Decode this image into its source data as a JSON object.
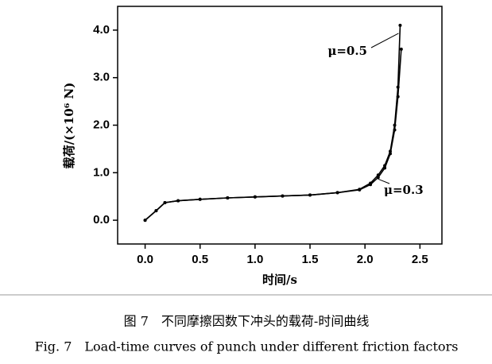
{
  "chart_data": {
    "type": "line",
    "x_label": "时间/s",
    "y_label": "载荷/(×10⁶ N)",
    "caption_zh": "图 7　不同摩擦因数下冲头的载荷-时间曲线",
    "caption_en": "Fig. 7　Load-time curves of punch under different friction factors",
    "xlim": [
      -0.25,
      2.7
    ],
    "ylim": [
      -0.5,
      4.5
    ],
    "xticks": [
      {
        "value": 0,
        "label": "0.0"
      },
      0.5,
      {
        "value": 1,
        "label": "1.0"
      },
      1.5,
      {
        "value": 2,
        "label": "2.0"
      },
      2.5
    ],
    "yticks": [
      {
        "value": 0,
        "label": "0.0"
      },
      {
        "value": 1,
        "label": "1.0"
      },
      {
        "value": 2,
        "label": "2.0"
      },
      {
        "value": 3,
        "label": "3.0"
      },
      {
        "value": 4,
        "label": "4.0"
      }
    ],
    "grid": false,
    "series": [
      {
        "name": "μ=0.5",
        "color": "#000000",
        "x": [
          0,
          0.1,
          0.18,
          0.3,
          0.5,
          0.75,
          1.0,
          1.25,
          1.5,
          1.75,
          1.95,
          2.05,
          2.12,
          2.18,
          2.23,
          2.27,
          2.3,
          2.32
        ],
        "values": [
          0,
          0.2,
          0.37,
          0.41,
          0.44,
          0.47,
          0.49,
          0.51,
          0.53,
          0.58,
          0.65,
          0.78,
          0.95,
          1.15,
          1.45,
          2.0,
          2.8,
          4.1
        ]
      },
      {
        "name": "μ=0.3",
        "color": "#000000",
        "x": [
          0,
          0.1,
          0.18,
          0.3,
          0.5,
          0.75,
          1.0,
          1.25,
          1.5,
          1.75,
          1.95,
          2.05,
          2.12,
          2.18,
          2.23,
          2.27,
          2.3,
          2.33
        ],
        "values": [
          0,
          0.2,
          0.37,
          0.41,
          0.44,
          0.47,
          0.49,
          0.51,
          0.53,
          0.58,
          0.64,
          0.75,
          0.9,
          1.1,
          1.4,
          1.9,
          2.6,
          3.6
        ]
      }
    ]
  }
}
